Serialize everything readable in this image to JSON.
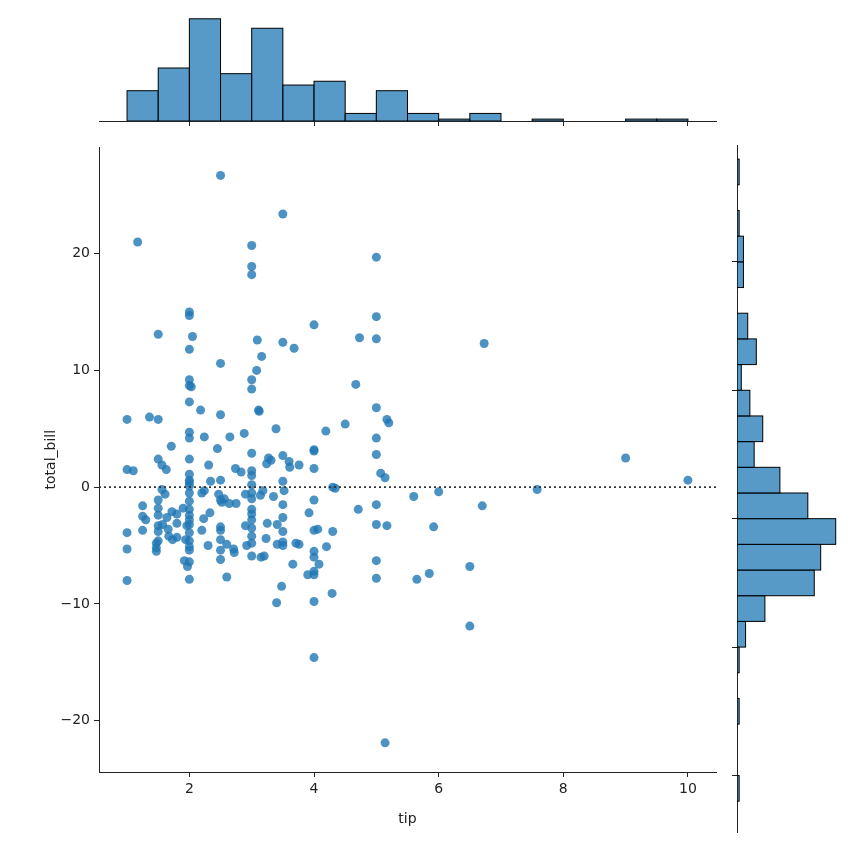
{
  "chart_data": [
    {
      "type": "scatter",
      "x_label": "tip",
      "y_label": "total_bill",
      "color": "#1f77b4",
      "marker": "circle",
      "xlim": [
        0.55,
        10.45
      ],
      "ylim": [
        -24.4,
        29.1
      ],
      "xticks": [
        2,
        4,
        6,
        8,
        10
      ],
      "yticks": [
        {
          "value": -20,
          "label": "−20"
        },
        {
          "value": -10,
          "label": "−10"
        },
        0,
        10,
        20
      ],
      "reference_y": 0,
      "x": [
        1.0,
        1.0,
        1.0,
        1.0,
        1.0,
        1.1,
        1.17,
        1.25,
        1.25,
        1.25,
        1.36,
        1.3,
        1.47,
        1.47,
        1.47,
        1.5,
        1.5,
        1.5,
        1.5,
        1.5,
        1.5,
        1.5,
        1.5,
        1.5,
        1.56,
        1.56,
        1.57,
        1.63,
        1.61,
        1.64,
        1.66,
        1.67,
        1.71,
        1.73,
        1.72,
        1.8,
        1.8,
        1.8,
        1.92,
        1.94,
        1.9,
        1.97,
        1.96,
        2.0,
        2.0,
        2.0,
        2.0,
        2.0,
        2.0,
        2.0,
        2.0,
        2.0,
        2.0,
        2.0,
        2.0,
        2.0,
        2.0,
        2.0,
        2.0,
        2.0,
        2.0,
        2.0,
        2.0,
        2.0,
        2.0,
        2.0,
        2.0,
        2.0,
        2.03,
        2.05,
        2.18,
        2.2,
        2.23,
        2.24,
        2.2,
        2.24,
        2.31,
        2.3,
        2.33,
        2.34,
        2.45,
        2.47,
        2.5,
        2.5,
        2.5,
        2.5,
        2.5,
        2.5,
        2.5,
        2.5,
        2.5,
        2.5,
        2.52,
        2.56,
        2.6,
        2.6,
        2.64,
        2.65,
        2.71,
        2.72,
        2.74,
        2.75,
        2.83,
        2.88,
        2.9,
        2.92,
        2.9,
        3.0,
        3.0,
        3.0,
        3.0,
        3.0,
        3.0,
        3.0,
        3.0,
        3.0,
        3.0,
        3.0,
        3.0,
        3.0,
        3.0,
        3.0,
        3.0,
        3.0,
        3.0,
        3.08,
        3.09,
        3.11,
        3.12,
        3.14,
        3.15,
        3.16,
        3.18,
        3.2,
        3.23,
        3.24,
        3.25,
        3.27,
        3.31,
        3.35,
        3.39,
        3.4,
        3.41,
        3.41,
        3.5,
        3.5,
        3.5,
        3.5,
        3.5,
        3.5,
        3.5,
        3.5,
        3.5,
        3.48,
        3.52,
        3.6,
        3.61,
        3.68,
        3.66,
        3.71,
        3.76,
        3.76,
        3.92,
        3.9,
        4.0,
        4.0,
        4.0,
        4.0,
        4.0,
        4.0,
        4.0,
        4.0,
        4.0,
        4.0,
        4.0,
        4.0,
        4.06,
        4.08,
        4.19,
        4.2,
        4.3,
        4.3,
        4.29,
        4.34,
        4.5,
        4.67,
        4.71,
        4.73,
        5.0,
        5.0,
        5.0,
        5.0,
        5.0,
        5.0,
        5.0,
        5.0,
        5.0,
        5.0,
        5.07,
        5.14,
        5.14,
        5.17,
        5.17,
        5.2,
        5.6,
        5.65,
        5.85,
        5.92,
        6.0,
        6.5,
        6.5,
        6.7,
        6.73,
        7.58,
        9.0,
        10.0
      ],
      "values": [
        5.8,
        -3.9,
        -5.3,
        -8.0,
        1.5,
        1.4,
        21.0,
        -1.6,
        -2.5,
        -3.7,
        6.0,
        -2.8,
        -5.5,
        -5.2,
        -4.8,
        13.1,
        5.8,
        2.4,
        -1.1,
        -1.8,
        -2.4,
        -3.3,
        -3.8,
        -4.6,
        1.9,
        -0.2,
        -3.2,
        1.5,
        -0.6,
        -2.6,
        -3.6,
        -4.2,
        3.5,
        -4.5,
        -2.1,
        -3.1,
        -4.3,
        -2.3,
        -6.3,
        -4.5,
        -1.8,
        -6.8,
        -3.3,
        15.0,
        14.7,
        11.8,
        9.2,
        8.7,
        7.3,
        4.7,
        4.2,
        2.4,
        1.1,
        0.6,
        0.1,
        -0.5,
        -1.2,
        -1.9,
        -2.4,
        -3.2,
        -3.9,
        -4.6,
        -5.1,
        -5.4,
        -6.4,
        -7.9,
        -2.8,
        0.4,
        8.6,
        12.9,
        6.6,
        -0.5,
        -2.7,
        4.3,
        -3.7,
        -0.3,
        1.9,
        -5.0,
        -2.2,
        0.5,
        3.3,
        -0.6,
        26.7,
        10.6,
        6.2,
        0.6,
        -1.1,
        -3.4,
        -4.5,
        -5.4,
        -6.2,
        -3.7,
        -1.3,
        -1.0,
        -7.7,
        -4.9,
        -1.4,
        4.3,
        -5.3,
        -5.6,
        1.6,
        -1.4,
        1.3,
        4.6,
        -0.6,
        -5.0,
        -3.3,
        20.7,
        18.9,
        18.2,
        9.2,
        8.4,
        2.9,
        1.4,
        1.0,
        0.2,
        -0.5,
        -1.0,
        -1.9,
        -2.8,
        -3.5,
        -4.2,
        -4.8,
        -5.9,
        -2.3,
        10.0,
        12.6,
        6.6,
        6.5,
        -0.7,
        -6.0,
        11.2,
        -0.3,
        -5.9,
        -4.4,
        2.0,
        -3.1,
        2.5,
        2.3,
        -0.8,
        5.0,
        -9.9,
        -4.9,
        -3.2,
        23.4,
        12.4,
        2.7,
        0.5,
        -1.5,
        -2.6,
        -3.8,
        -4.7,
        -5.0,
        -8.5,
        -0.3,
        2.2,
        1.7,
        11.9,
        -6.6,
        -4.8,
        1.9,
        -4.9,
        -2.2,
        -7.5,
        13.9,
        3.2,
        3.1,
        1.6,
        -1.1,
        -3.7,
        -5.5,
        -6.0,
        -7.2,
        -7.5,
        -9.8,
        -14.6,
        -3.6,
        -6.6,
        4.8,
        -5.1,
        0.0,
        -3.8,
        -9.1,
        -0.1,
        5.4,
        8.8,
        -1.9,
        12.8,
        19.7,
        14.6,
        12.7,
        6.8,
        4.2,
        2.8,
        -1.5,
        -3.2,
        -6.3,
        -7.8,
        1.2,
        0.8,
        -21.9,
        -3.3,
        5.8,
        5.5,
        -0.8,
        -7.9,
        -7.4,
        -3.4,
        -0.4,
        -6.8,
        -11.9,
        -1.6,
        12.3,
        -0.2,
        2.5,
        0.6
      ]
    },
    {
      "type": "histogram",
      "color": "#1f77b4",
      "tick_labels": false,
      "bins": [
        1,
        1.5,
        2,
        2.5,
        3,
        3.5,
        4,
        4.5,
        5,
        5.5,
        6,
        6.5,
        7,
        7.5,
        8,
        8.5,
        9,
        9.5,
        10
      ],
      "counts": [
        16,
        28,
        54,
        25,
        49,
        19,
        21,
        4,
        16,
        4,
        1,
        4,
        0,
        1,
        0,
        0,
        1,
        1
      ],
      "xlim": [
        0.55,
        10.45
      ],
      "xticks": [
        2,
        4,
        6,
        8,
        10
      ],
      "ylim": [
        0,
        56
      ]
    },
    {
      "type": "histogram",
      "orientation": "horizontal",
      "color": "#1f77b4",
      "tick_labels": false,
      "bins": [
        -22,
        -20,
        -18,
        -16,
        -14,
        -12,
        -10,
        -8,
        -6,
        -4,
        -2,
        0,
        2,
        4,
        6,
        8,
        10,
        12,
        14,
        16,
        18,
        20,
        22,
        24,
        26,
        28
      ],
      "counts": [
        1,
        0,
        0,
        1,
        0,
        1,
        4,
        13,
        36,
        39,
        46,
        33,
        20,
        8,
        12,
        6,
        2,
        9,
        5,
        0,
        3,
        3,
        1,
        0,
        1
      ],
      "ylim": [
        -24.4,
        29.1
      ],
      "yticks": [
        -20,
        -10,
        0,
        10,
        20
      ],
      "xlim": [
        0,
        48
      ]
    }
  ]
}
